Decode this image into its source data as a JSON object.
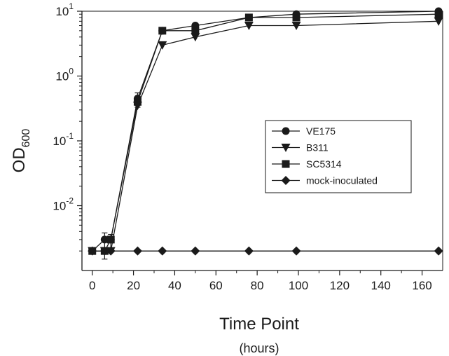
{
  "chart_data": {
    "type": "line",
    "title": "",
    "xlabel": "Time Point",
    "xlabel_sub": "(hours)",
    "ylabel": "OD",
    "ylabel_sub": "600",
    "xlim": [
      -5,
      170
    ],
    "ylim": [
      0.001,
      10
    ],
    "yscale": "log",
    "x_ticks": [
      0,
      20,
      40,
      60,
      80,
      100,
      120,
      140,
      160
    ],
    "x_tick_labels": [
      "0",
      "20",
      "40",
      "60",
      "80",
      "100",
      "120",
      "140",
      "160"
    ],
    "y_ticks": [
      {
        "value": 10,
        "base": "10",
        "exp": "1"
      },
      {
        "value": 1,
        "base": "10",
        "exp": "0"
      },
      {
        "value": 0.1,
        "base": "10",
        "exp": "-1"
      },
      {
        "value": 0.01,
        "base": "10",
        "exp": "-2"
      }
    ],
    "grid": false,
    "legend_position": "center-right",
    "series": [
      {
        "name": "VE175",
        "marker": "circle",
        "x": [
          0,
          6,
          9,
          22,
          34,
          50,
          76,
          99,
          168
        ],
        "y": [
          0.002,
          0.003,
          0.003,
          0.45,
          5,
          6,
          8,
          9,
          10
        ]
      },
      {
        "name": "B311",
        "marker": "triangle-down",
        "x": [
          0,
          6,
          9,
          22,
          34,
          50,
          76,
          99,
          168
        ],
        "y": [
          0.002,
          0.002,
          0.002,
          0.35,
          3,
          4,
          6,
          6,
          7
        ]
      },
      {
        "name": "SC5314",
        "marker": "square",
        "x": [
          0,
          6,
          9,
          22,
          34,
          50,
          76,
          99,
          168
        ],
        "y": [
          0.002,
          0.002,
          0.003,
          0.4,
          5,
          5,
          8,
          8,
          9
        ]
      },
      {
        "name": "mock-inoculated",
        "marker": "diamond",
        "x": [
          0,
          6,
          9,
          22,
          34,
          50,
          76,
          99,
          168
        ],
        "y": [
          0.002,
          0.002,
          0.002,
          0.002,
          0.002,
          0.002,
          0.002,
          0.002,
          0.002
        ]
      }
    ],
    "error_bars": [
      {
        "series": "VE175",
        "x": 6,
        "low": 0.0015,
        "high": 0.0038
      },
      {
        "series": "SC5314",
        "x": 9,
        "low": 0.0022,
        "high": 0.0036
      },
      {
        "series": "VE175",
        "x": 22,
        "low": 0.33,
        "high": 0.55
      }
    ],
    "colors": {
      "line": "#1a1a1a",
      "marker": "#1a1a1a"
    }
  }
}
